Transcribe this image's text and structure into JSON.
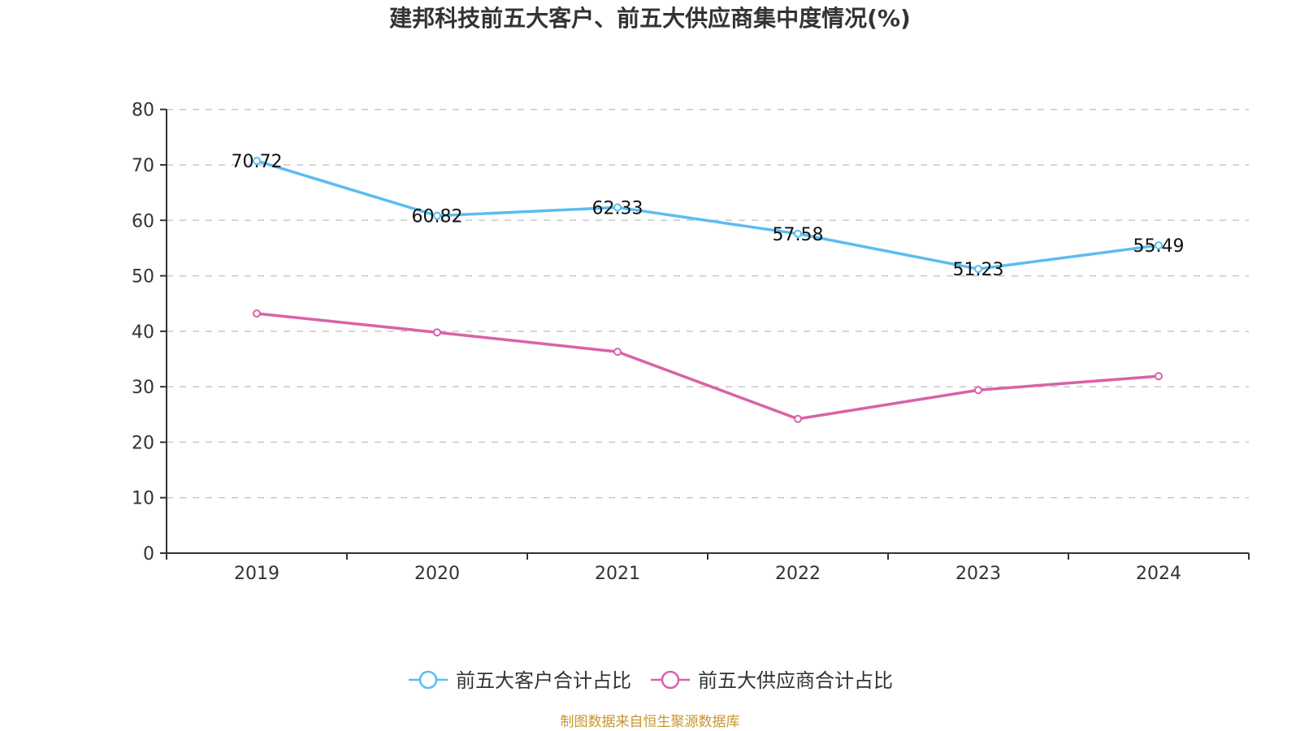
{
  "chart_data": {
    "type": "line",
    "title": "建邦科技前五大客户、前五大供应商集中度情况(%)",
    "xlabel": "",
    "ylabel": "",
    "categories": [
      "2019",
      "2020",
      "2021",
      "2022",
      "2023",
      "2024"
    ],
    "ylim": [
      0,
      80
    ],
    "yticks": [
      0,
      10,
      20,
      30,
      40,
      50,
      60,
      70,
      80
    ],
    "grid": true,
    "legend_position": "bottom-center",
    "series": [
      {
        "name": "前五大客户合计占比",
        "color": "#5bbdf0",
        "values": [
          70.72,
          60.82,
          62.33,
          57.58,
          51.23,
          55.49
        ],
        "labels": [
          "70.72",
          "60.82",
          "62.33",
          "57.58",
          "51.23",
          "55.49"
        ],
        "show_labels": true
      },
      {
        "name": "前五大供应商合计占比",
        "color": "#d962a8",
        "values": [
          43.2,
          39.8,
          36.3,
          24.2,
          29.4,
          31.9
        ],
        "show_labels": false
      }
    ],
    "source": "制图数据来自恒生聚源数据库"
  }
}
